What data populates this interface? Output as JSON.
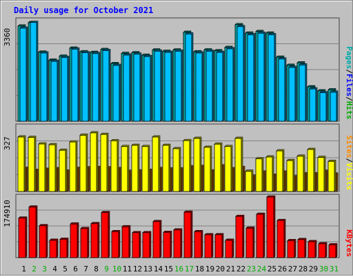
{
  "chart_data": [
    {
      "type": "bar",
      "title": "Daily usage for October 2021",
      "panel": "top",
      "y_max_label": "3360",
      "ylim": [
        0,
        3360
      ],
      "categories": [
        "1",
        "2",
        "3",
        "4",
        "5",
        "6",
        "7",
        "8",
        "9",
        "10",
        "11",
        "12",
        "13",
        "14",
        "15",
        "16",
        "17",
        "18",
        "19",
        "20",
        "21",
        "22",
        "23",
        "24",
        "25",
        "26",
        "27",
        "28",
        "29",
        "30",
        "31"
      ],
      "weekend_days": [
        "2",
        "3",
        "9",
        "10",
        "16",
        "17",
        "23",
        "24",
        "30",
        "31"
      ],
      "series": [
        {
          "name": "Pages",
          "color": "#00aaaa",
          "values": [
            3180,
            3295,
            2310,
            2040,
            2175,
            2440,
            2320,
            2300,
            2395,
            1925,
            2265,
            2290,
            2205,
            2380,
            2335,
            2380,
            2970,
            2320,
            2385,
            2355,
            2465,
            3225,
            2945,
            2995,
            2945,
            2140,
            1870,
            1950,
            1150,
            1015,
            1050
          ]
        },
        {
          "name": "Files",
          "color": "#00c0ff",
          "values": [
            3110,
            3300,
            2280,
            2000,
            2130,
            2410,
            2290,
            2260,
            2360,
            1865,
            2210,
            2240,
            2160,
            2340,
            2300,
            2340,
            2915,
            2280,
            2340,
            2300,
            2420,
            3160,
            2890,
            2940,
            2890,
            2080,
            1800,
            1880,
            1080,
            955,
            970
          ]
        },
        {
          "name": "Hits",
          "color": "#00aa00",
          "values": [
            3180,
            3295,
            2310,
            2040,
            2175,
            2440,
            2320,
            2300,
            2395,
            1925,
            2265,
            2290,
            2205,
            2380,
            2335,
            2380,
            2970,
            2320,
            2385,
            2355,
            2465,
            3225,
            2945,
            2995,
            2945,
            2140,
            1870,
            1950,
            1150,
            1015,
            1050
          ]
        }
      ],
      "legend": "right"
    },
    {
      "type": "bar",
      "panel": "middle",
      "y_max_label": "327",
      "ylim": [
        0,
        327
      ],
      "series": [
        {
          "name": "Sites",
          "color": "#ff8c00",
          "values": [
            117,
            107,
            112,
            115,
            103,
            117,
            120,
            121,
            120,
            116,
            102,
            104,
            107,
            116,
            114,
            114,
            125,
            127,
            104,
            130,
            115,
            121,
            77,
            98,
            82,
            98,
            74,
            90,
            90,
            102,
            88
          ]
        },
        {
          "name": "Visits",
          "color": "#ffff00",
          "values": [
            275,
            273,
            240,
            236,
            208,
            250,
            284,
            296,
            288,
            256,
            227,
            233,
            227,
            275,
            233,
            216,
            257,
            268,
            223,
            239,
            227,
            268,
            102,
            165,
            174,
            205,
            156,
            178,
            212,
            172,
            152
          ]
        }
      ],
      "legend": "right"
    },
    {
      "type": "bar",
      "panel": "bottom",
      "y_max_label": "174910",
      "ylim": [
        0,
        174910
      ],
      "series": [
        {
          "name": "KBytes",
          "color": "#ff0000",
          "values": [
            114000,
            146000,
            92000,
            50000,
            53000,
            97000,
            84000,
            98000,
            130000,
            75000,
            89000,
            72000,
            72000,
            104000,
            73000,
            80000,
            131000,
            75000,
            66000,
            66000,
            50000,
            119000,
            85000,
            125000,
            174910,
            107000,
            49000,
            52000,
            46000,
            40000,
            37000
          ]
        }
      ],
      "legend": "right"
    }
  ],
  "legend_labels": {
    "top": [
      {
        "text": "Pages",
        "color": "#00aaaa"
      },
      {
        "text": "/",
        "color": "#000000"
      },
      {
        "text": "Files",
        "color": "#0000ff"
      },
      {
        "text": "/",
        "color": "#000000"
      },
      {
        "text": "Hits",
        "color": "#00aa00"
      }
    ],
    "middle": [
      {
        "text": "Sites",
        "color": "#ff8c00"
      },
      {
        "text": "/",
        "color": "#000000"
      },
      {
        "text": "Visits",
        "color": "#ffff00"
      }
    ],
    "bottom": [
      {
        "text": "KBytes",
        "color": "#ff0000"
      }
    ]
  },
  "colors": {
    "background": "#c0c0c0",
    "weekday_label": "#000000",
    "weekend_label": "#00aa00",
    "title": "#0000ff",
    "gridline": "#808080"
  }
}
